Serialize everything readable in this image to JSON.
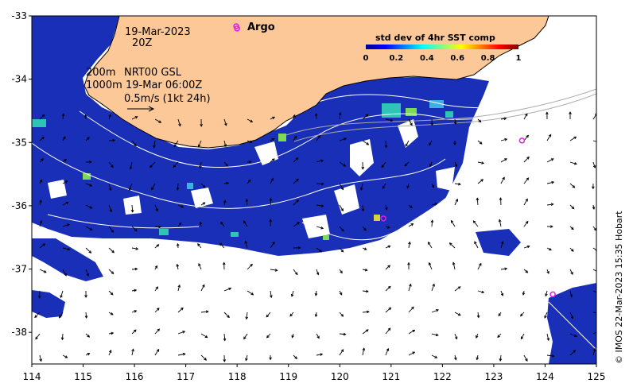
{
  "map": {
    "date_line": "19-Mar-2023",
    "hour_line": "20Z",
    "depth_line_1": "200m",
    "depth_line_2": "1000m",
    "product_line_1": "NRT00 GSL",
    "product_line_2": "19-Mar 06:00Z",
    "vector_scale_label": "0.5m/s (1kt 24h)",
    "argo_label": "Argo",
    "credit": "© IMOS 22-Mar-2023 15:35 Hobart",
    "land_color": "#fdc897",
    "argo_color": "#e020e0"
  },
  "colorbar": {
    "title": "std dev of 4hr SST comp",
    "ticks": [
      "0",
      "0.2",
      "0.4",
      "0.6",
      "0.8",
      "1"
    ],
    "colormap": "jet"
  },
  "axes": {
    "lon_ticks": [
      "114",
      "115",
      "116",
      "117",
      "118",
      "119",
      "120",
      "121",
      "122",
      "123",
      "124",
      "125"
    ],
    "lat_ticks": [
      "-33",
      "-34",
      "-35",
      "-36",
      "-37",
      "-38"
    ],
    "lon_range": [
      114,
      125
    ],
    "lat_range": [
      -38.5,
      -33
    ]
  },
  "argo_floats": [
    {
      "lon": 118.0,
      "lat": -33.2
    },
    {
      "lon": 120.85,
      "lat": -36.2
    },
    {
      "lon": 123.55,
      "lat": -34.97
    },
    {
      "lon": 124.15,
      "lat": -37.4
    }
  ]
}
